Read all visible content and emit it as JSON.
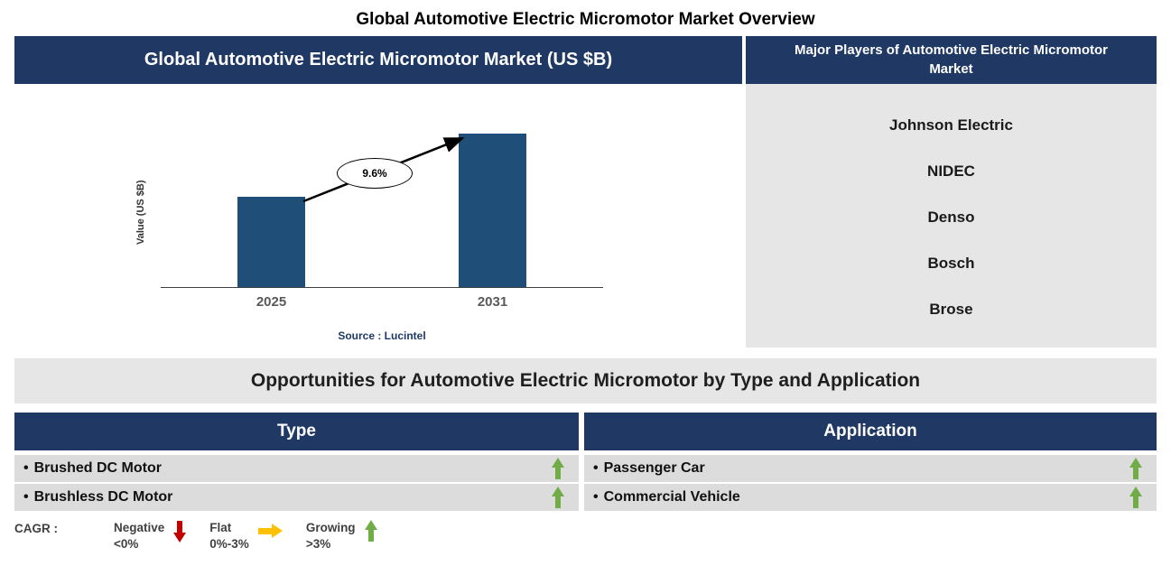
{
  "page": {
    "title": "Global Automotive Electric Micromotor Market Overview"
  },
  "market_chart": {
    "header": "Global Automotive Electric Micromotor Market (US $B)",
    "y_axis_label": "Value (US $B)",
    "source": "Source : Lucintel",
    "cagr_label": "9.6%"
  },
  "chart_data": {
    "type": "bar",
    "categories": [
      "2025",
      "2031"
    ],
    "values": [
      100,
      170
    ],
    "values_are_relative_estimates": true,
    "title": "Global Automotive Electric Micromotor Market (US $B)",
    "xlabel": "",
    "ylabel": "Value (US $B)",
    "annotations": [
      "9.6% CAGR arrow from 2025 bar to 2031 bar"
    ],
    "bar_color": "#1F4E79",
    "grid": false,
    "legend": false
  },
  "major_players": {
    "header": "Major Players of Automotive Electric Micromotor Market",
    "players": [
      "Johnson Electric",
      "NIDEC",
      "Denso",
      "Bosch",
      "Brose"
    ]
  },
  "opportunities": {
    "title": "Opportunities for Automotive Electric Micromotor by Type and Application",
    "bullet": "•",
    "tables": [
      {
        "header": "Type",
        "rows": [
          {
            "label": "Brushed DC Motor",
            "trend": "growing"
          },
          {
            "label": "Brushless DC Motor",
            "trend": "growing"
          }
        ]
      },
      {
        "header": "Application",
        "rows": [
          {
            "label": "Passenger Car",
            "trend": "growing"
          },
          {
            "label": "Commercial Vehicle",
            "trend": "growing"
          }
        ]
      }
    ]
  },
  "legend": {
    "label": "CAGR :",
    "items": [
      {
        "name": "Negative",
        "range": "<0%",
        "direction": "down",
        "color": "#C00000"
      },
      {
        "name": "Flat",
        "range": "0%-3%",
        "direction": "right",
        "color": "#FFC000"
      },
      {
        "name": "Growing",
        "range": ">3%",
        "direction": "up",
        "color": "#70AD47"
      }
    ]
  },
  "trend_meta": {
    "growing": {
      "direction": "up",
      "color": "#70AD47"
    },
    "flat": {
      "direction": "right",
      "color": "#FFC000"
    },
    "negative": {
      "direction": "down",
      "color": "#C00000"
    }
  },
  "colors": {
    "navy": "#1F3864",
    "bar": "#1F4E79",
    "panel_gray": "#E7E6E6",
    "row_gray": "#DCDCDC",
    "green": "#70AD47",
    "red": "#C00000",
    "yellow": "#FFC000"
  }
}
